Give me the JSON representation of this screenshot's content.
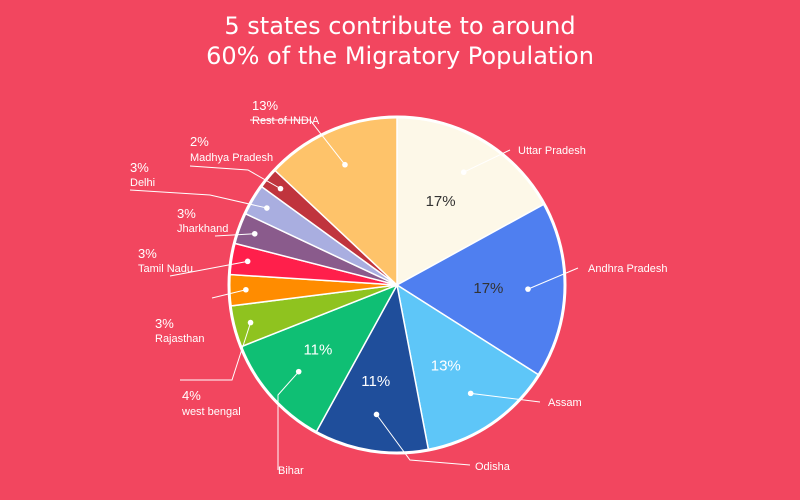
{
  "title_lines": [
    "5 states contribute to around",
    "60% of the Migratory Population"
  ],
  "colors": {
    "background": "#f2465f",
    "outline": "#ffffff"
  },
  "chart_data": {
    "type": "pie",
    "title": "5 states contribute to around 60% of the Migratory Population",
    "slices": [
      {
        "label": "Uttar Pradesh",
        "value": 17,
        "pct_text": "17%",
        "color": "#fdf8e8"
      },
      {
        "label": "Andhra Pradesh",
        "value": 17,
        "pct_text": "17%",
        "color": "#4f7ff0"
      },
      {
        "label": "Assam",
        "value": 13,
        "pct_text": "13%",
        "color": "#5ec6f8"
      },
      {
        "label": "Odisha",
        "value": 11,
        "pct_text": "11%",
        "color": "#1f4e9b"
      },
      {
        "label": "Bihar",
        "value": 11,
        "pct_text": "11%",
        "color": "#0fbf74"
      },
      {
        "label": "west bengal",
        "value": 4,
        "pct_text": "4%",
        "color": "#8fc31f"
      },
      {
        "label": "Rajasthan",
        "value": 3,
        "pct_text": "3%",
        "color": "#ff8c00"
      },
      {
        "label": "Tamil Nadu",
        "value": 3,
        "pct_text": "3%",
        "color": "#ff1f4b"
      },
      {
        "label": "Jharkhand",
        "value": 3,
        "pct_text": "3%",
        "color": "#8a5b8c"
      },
      {
        "label": "Delhi",
        "value": 3,
        "pct_text": "3%",
        "color": "#a9aee0"
      },
      {
        "label": "Madhya Pradesh",
        "value": 2,
        "pct_text": "2%",
        "color": "#c0343d"
      },
      {
        "label": "Rest of INDIA",
        "value": 13,
        "pct_text": "13%",
        "color": "#fec36a"
      }
    ]
  }
}
